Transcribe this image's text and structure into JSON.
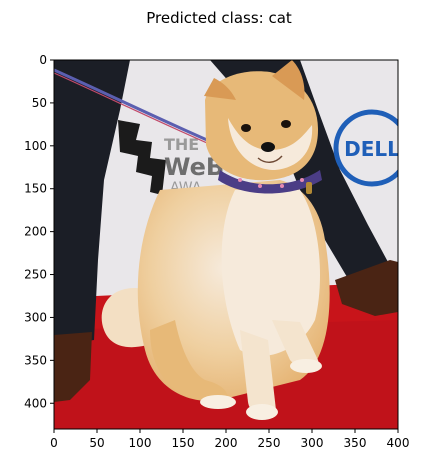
{
  "title": "Predicted class: cat",
  "axes": {
    "xlim": [
      0,
      400
    ],
    "ylim": [
      430,
      0
    ],
    "x_ticks": [
      0,
      50,
      100,
      150,
      200,
      250,
      300,
      350,
      400
    ],
    "y_ticks": [
      0,
      50,
      100,
      150,
      200,
      250,
      300,
      350,
      400
    ],
    "y_inverted": true,
    "grid": false
  },
  "image": {
    "subject": "shiba inu dog",
    "backdrop_text_left": "THE WEBBY AWARDS",
    "backdrop_text_right": "DELL",
    "colors": {
      "backdrop": "#e9e7ea",
      "carpet": "#c8141a",
      "fur": "#e7b978",
      "fur_light": "#f6eadb",
      "trousers": "#1b1e26",
      "shoes": "#4a2414",
      "collar": "#4b3d86",
      "dell_blue": "#1f5fb8"
    }
  }
}
